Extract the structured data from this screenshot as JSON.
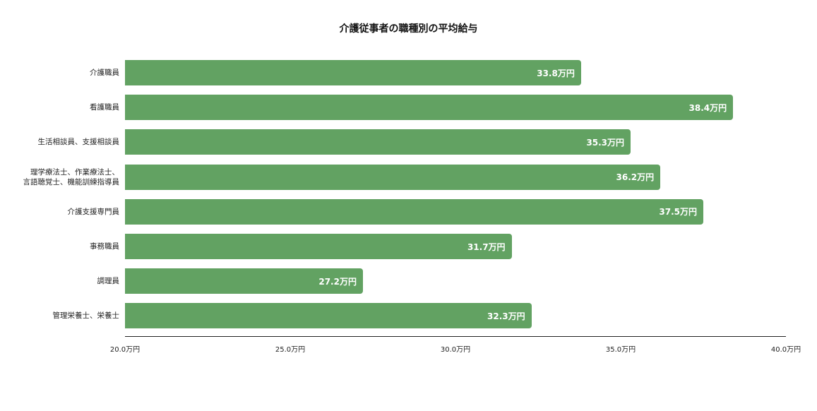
{
  "chart_data": {
    "type": "bar",
    "orientation": "horizontal",
    "title": "介護従事者の職種別の平均給与",
    "xlabel": "",
    "ylabel": "",
    "xlim": [
      20.0,
      40.0
    ],
    "unit": "万円",
    "categories": [
      "介護職員",
      "看護職員",
      "生活相談員、支援相談員",
      "理学療法士、作業療法士、\n言語聴覚士、機能訓練指導員",
      "介護支援専門員",
      "事務職員",
      "調理員",
      "管理栄養士、栄養士"
    ],
    "values": [
      33.8,
      38.4,
      35.3,
      36.2,
      37.5,
      31.7,
      27.2,
      32.3
    ],
    "value_labels": [
      "33.8万円",
      "38.4万円",
      "35.3万円",
      "36.2万円",
      "37.5万円",
      "31.7万円",
      "27.2万円",
      "32.3万円"
    ],
    "x_ticks": [
      20.0,
      25.0,
      30.0,
      35.0,
      40.0
    ],
    "x_tick_labels": [
      "20.0万円",
      "25.0万円",
      "30.0万円",
      "35.0万円",
      "40.0万円"
    ],
    "grid": false,
    "legend": null,
    "bar_color": "#62a262"
  }
}
